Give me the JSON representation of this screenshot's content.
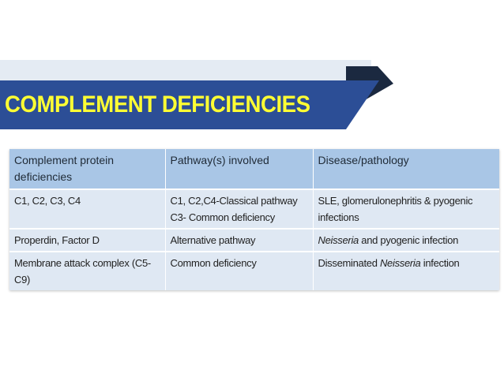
{
  "title": "COMPLEMENT DEFICIENCIES",
  "table": {
    "headers": [
      "Complement protein deficiencies",
      "Pathway(s) involved",
      "Disease/pathology"
    ],
    "rows": [
      {
        "protein": "C1, C2, C3, C4",
        "pathway_line1": "C1, C2,C4-Classical pathway",
        "pathway_line2": "C3- Common deficiency",
        "disease_pre": "SLE, glomerulonephritis & pyogenic infections",
        "disease_em": "",
        "disease_post": ""
      },
      {
        "protein": "Properdin, Factor D",
        "pathway_line1": "Alternative pathway",
        "pathway_line2": "",
        "disease_pre": "",
        "disease_em": "Neisseria",
        "disease_post": " and pyogenic infection"
      },
      {
        "protein": "Membrane attack complex (C5-C9)",
        "pathway_line1": "Common deficiency",
        "pathway_line2": "",
        "disease_pre": "Disseminated ",
        "disease_em": "Neisseria",
        "disease_post": " infection"
      }
    ]
  },
  "colors": {
    "banner": "#2c4e96",
    "banner_dark": "#1b2940",
    "title_text": "#ffff33",
    "header_row": "#a9c6e6",
    "body_row": "#dfe8f3"
  }
}
